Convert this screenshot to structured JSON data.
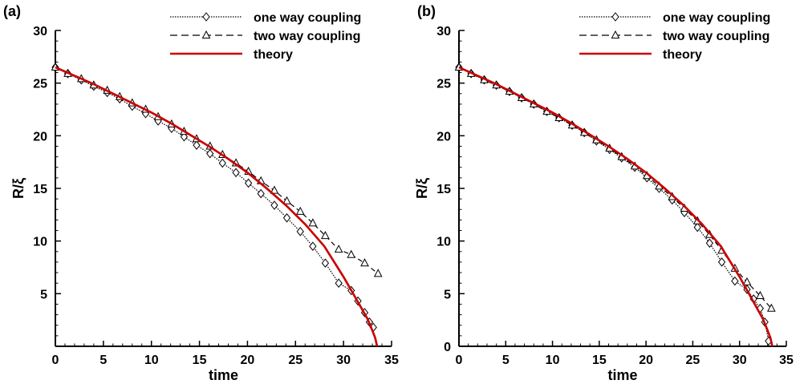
{
  "chart_data": [
    {
      "type": "line",
      "panel_label": "(a)",
      "xlabel": "time",
      "ylabel": "R/ξ",
      "xlim": [
        0,
        35
      ],
      "ylim": [
        0,
        30
      ],
      "xticks": [
        "0",
        "5",
        "10",
        "15",
        "20",
        "25",
        "30",
        "35"
      ],
      "yticks": [
        "5",
        "10",
        "15",
        "20",
        "25",
        "30"
      ],
      "grid": false,
      "legend_position": "top-right",
      "series": [
        {
          "name": "one way coupling",
          "style": "dotted-diamond",
          "color": "#000000",
          "x": [
            0,
            1.3,
            2.7,
            4.0,
            5.4,
            6.7,
            8.0,
            9.4,
            10.7,
            12.1,
            13.4,
            14.7,
            16.1,
            17.4,
            18.8,
            20.1,
            21.4,
            22.8,
            24.1,
            25.5,
            26.8,
            28.1,
            29.5,
            30.8,
            31.5,
            32.2,
            32.7,
            33.1
          ],
          "y": [
            26.5,
            25.9,
            25.3,
            24.7,
            24.1,
            23.5,
            22.8,
            22.1,
            21.4,
            20.7,
            19.9,
            19.1,
            18.3,
            17.4,
            16.5,
            15.5,
            14.5,
            13.4,
            12.2,
            10.9,
            9.5,
            7.9,
            6.0,
            5.3,
            4.3,
            3.2,
            2.3,
            1.8
          ]
        },
        {
          "name": "two way coupling",
          "style": "dashed-triangle",
          "color": "#000000",
          "x": [
            0,
            1.3,
            2.7,
            4.0,
            5.4,
            6.7,
            8.0,
            9.4,
            10.7,
            12.1,
            13.4,
            14.7,
            16.1,
            17.4,
            18.8,
            20.1,
            21.4,
            22.8,
            24.1,
            25.5,
            26.8,
            28.1,
            29.5,
            30.8,
            32.2,
            33.6
          ],
          "y": [
            26.5,
            25.9,
            25.4,
            24.8,
            24.3,
            23.7,
            23.1,
            22.5,
            21.8,
            21.1,
            20.4,
            19.7,
            19.0,
            18.2,
            17.4,
            16.6,
            15.7,
            14.8,
            13.8,
            12.8,
            11.7,
            10.5,
            9.2,
            8.7,
            7.9,
            6.9
          ]
        },
        {
          "name": "theory",
          "style": "solid",
          "color": "#cc0000",
          "x": [
            0,
            2,
            4,
            6,
            8,
            10,
            12,
            14,
            16,
            18,
            20,
            22,
            24,
            26,
            28,
            30,
            31,
            32,
            32.5,
            33,
            33.3,
            33.5
          ],
          "y": [
            26.5,
            25.7,
            24.9,
            24.0,
            23.1,
            22.2,
            21.2,
            20.1,
            19.0,
            17.8,
            16.5,
            15.0,
            13.4,
            11.6,
            9.5,
            6.6,
            5.0,
            3.4,
            2.6,
            1.5,
            0.8,
            0
          ]
        }
      ]
    },
    {
      "type": "line",
      "panel_label": "(b)",
      "xlabel": "time",
      "ylabel": "R/ξ",
      "xlim": [
        0,
        35
      ],
      "ylim": [
        0,
        30
      ],
      "xticks": [
        "0",
        "5",
        "10",
        "15",
        "20",
        "25",
        "30",
        "35"
      ],
      "yticks": [
        "0",
        "5",
        "10",
        "15",
        "20",
        "25",
        "30"
      ],
      "grid": false,
      "legend_position": "top-right",
      "series": [
        {
          "name": "one way coupling",
          "style": "dotted-diamond",
          "color": "#000000",
          "x": [
            0,
            1.3,
            2.7,
            4.0,
            5.4,
            6.7,
            8.0,
            9.4,
            10.7,
            12.1,
            13.4,
            14.7,
            16.1,
            17.4,
            18.8,
            20.1,
            21.4,
            22.8,
            24.1,
            25.5,
            26.8,
            28.1,
            29.5,
            30.8,
            31.5,
            32.2,
            32.7,
            33.1
          ],
          "y": [
            26.5,
            25.9,
            25.3,
            24.8,
            24.2,
            23.6,
            23.0,
            22.3,
            21.7,
            21.0,
            20.3,
            19.5,
            18.7,
            17.9,
            17.0,
            16.0,
            15.0,
            13.9,
            12.7,
            11.3,
            9.8,
            8.0,
            6.2,
            5.4,
            4.5,
            3.6,
            2.3,
            0.5
          ]
        },
        {
          "name": "two way coupling",
          "style": "dashed-triangle",
          "color": "#000000",
          "x": [
            0,
            1.3,
            2.7,
            4.0,
            5.4,
            6.7,
            8.0,
            9.4,
            10.7,
            12.1,
            13.4,
            14.7,
            16.1,
            17.4,
            18.8,
            20.1,
            21.4,
            22.8,
            24.1,
            25.5,
            26.8,
            28.1,
            29.5,
            30.8,
            32.2,
            33.4
          ],
          "y": [
            26.5,
            25.9,
            25.3,
            24.8,
            24.2,
            23.6,
            23.0,
            22.3,
            21.7,
            21.0,
            20.3,
            19.6,
            18.8,
            18.0,
            17.1,
            16.2,
            15.2,
            14.2,
            13.1,
            11.9,
            10.6,
            9.1,
            7.4,
            6.1,
            4.8,
            3.6
          ]
        },
        {
          "name": "theory",
          "style": "solid",
          "color": "#cc0000",
          "x": [
            0,
            2,
            4,
            6,
            8,
            10,
            12,
            14,
            16,
            18,
            20,
            22,
            24,
            26,
            28,
            30,
            31,
            32,
            32.5,
            33,
            33.3,
            33.5
          ],
          "y": [
            26.5,
            25.7,
            24.9,
            24.0,
            23.1,
            22.2,
            21.2,
            20.1,
            19.0,
            17.8,
            16.5,
            15.0,
            13.4,
            11.6,
            9.5,
            6.6,
            5.0,
            3.4,
            2.6,
            1.5,
            0.8,
            0
          ]
        }
      ]
    }
  ]
}
